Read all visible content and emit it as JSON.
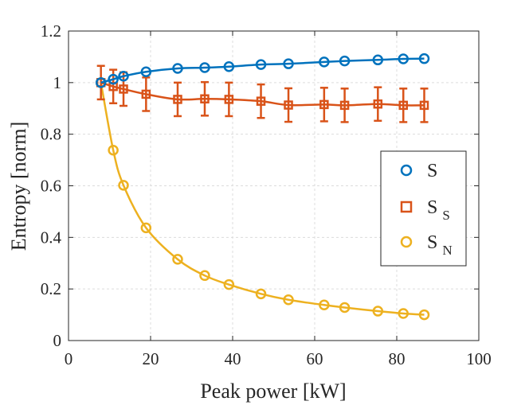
{
  "chart_data": {
    "type": "line",
    "title": "",
    "xlabel": "Peak power [kW]",
    "ylabel": "Entropy [norm]",
    "xlim": [
      0,
      100
    ],
    "ylim": [
      0,
      1.2
    ],
    "xticks": [
      0,
      20,
      40,
      60,
      80,
      100
    ],
    "yticks": [
      0,
      0.2,
      0.4,
      0.6,
      0.8,
      1,
      1.2
    ],
    "xtick_labels": [
      "0",
      "20",
      "40",
      "60",
      "80",
      "100"
    ],
    "ytick_labels": [
      "0",
      "0.2",
      "0.4",
      "0.6",
      "0.8",
      "1",
      "1.2"
    ],
    "grid": true,
    "legend_position": "right",
    "x": [
      7.9,
      10.9,
      13.4,
      18.9,
      26.6,
      33.2,
      39.1,
      46.9,
      53.6,
      62.3,
      67.3,
      75.4,
      81.6,
      86.7
    ],
    "series": [
      {
        "name": "S",
        "sub": "",
        "marker": "circle",
        "color": "#0072BD",
        "values": [
          1.0,
          1.013,
          1.025,
          1.042,
          1.055,
          1.058,
          1.062,
          1.07,
          1.073,
          1.08,
          1.084,
          1.088,
          1.092,
          1.093
        ]
      },
      {
        "name": "S",
        "sub": "S",
        "marker": "square",
        "color": "#D95319",
        "values": [
          1.0,
          0.985,
          0.975,
          0.955,
          0.935,
          0.937,
          0.935,
          0.928,
          0.913,
          0.915,
          0.912,
          0.917,
          0.912,
          0.912
        ],
        "errors": [
          0.065,
          0.065,
          0.065,
          0.065,
          0.065,
          0.065,
          0.065,
          0.065,
          0.065,
          0.065,
          0.065,
          0.065,
          0.065,
          0.065
        ]
      },
      {
        "name": "S",
        "sub": "N",
        "marker": "circle",
        "color": "#EDB120",
        "values": [
          1.0,
          0.738,
          0.602,
          0.437,
          0.315,
          0.252,
          0.217,
          0.181,
          0.158,
          0.138,
          0.128,
          0.114,
          0.105,
          0.1
        ]
      }
    ]
  }
}
